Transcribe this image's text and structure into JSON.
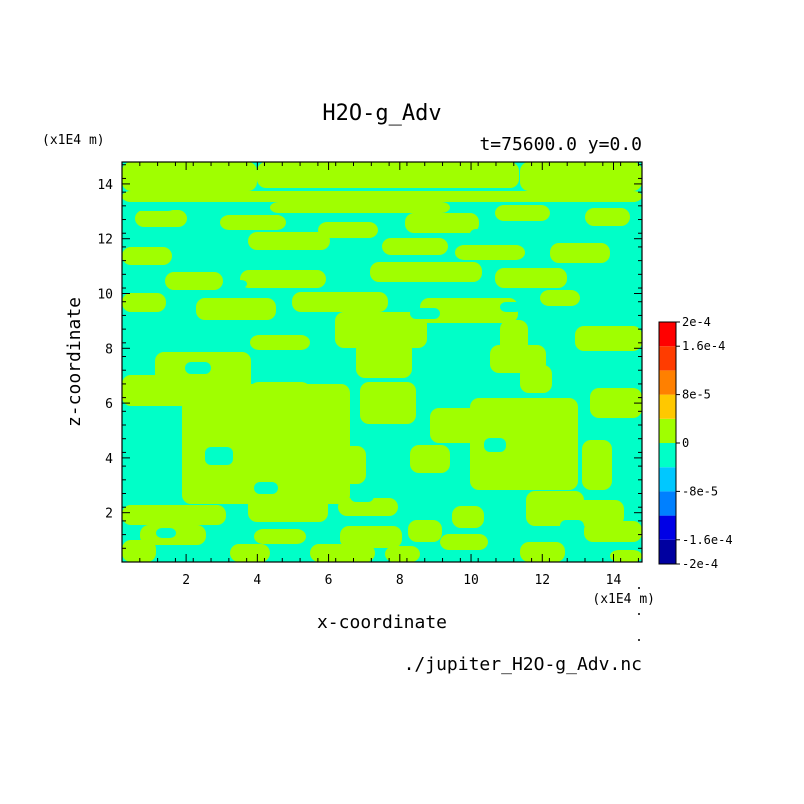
{
  "chart_data": {
    "type": "heatmap",
    "title": "H2O-g_Adv",
    "subtitle": "t=75600.0 y=0.0",
    "xlabel": "x-coordinate",
    "ylabel": "z-coordinate",
    "x_unit": "(x1E4 m)",
    "y_unit": "(x1E4 m)",
    "xlim": [
      0.2,
      14.8
    ],
    "ylim": [
      0.2,
      14.8
    ],
    "x_ticks": [
      2,
      4,
      6,
      8,
      10,
      12,
      14
    ],
    "y_ticks": [
      2,
      4,
      6,
      8,
      10,
      12,
      14
    ],
    "x_tick_labels": [
      "2",
      "4",
      "6",
      "8",
      "10",
      "12",
      "14"
    ],
    "y_tick_labels": [
      "2",
      "4",
      "6",
      "8",
      "10",
      "12",
      "14"
    ],
    "colorbar": {
      "levels": [
        -0.0002,
        -0.00016,
        -0.00012,
        -8e-05,
        -4e-05,
        0,
        4e-05,
        8e-05,
        0.00012,
        0.00016,
        0.0002
      ],
      "labels": [
        "2e-4",
        "1.6e-4",
        "8e-5",
        "0",
        "-8e-5",
        "-1.6e-4",
        "-2e-4"
      ],
      "label_values": [
        0.0002,
        0.00016,
        8e-05,
        0,
        -8e-05,
        -0.00016,
        -0.0002
      ],
      "colors": [
        "#0000a0",
        "#0000e6",
        "#0080ff",
        "#00c8ff",
        "#00ffc8",
        "#a0ff00",
        "#ffc800",
        "#ff8000",
        "#ff3c00",
        "#ff0000"
      ]
    },
    "field_colors": {
      "negative": "#00ffc8",
      "positive": "#a0ff00"
    },
    "grid": false,
    "legend_placement": "right"
  },
  "footer": {
    "source": "./jupiter_H2O-g_Adv.nc"
  }
}
